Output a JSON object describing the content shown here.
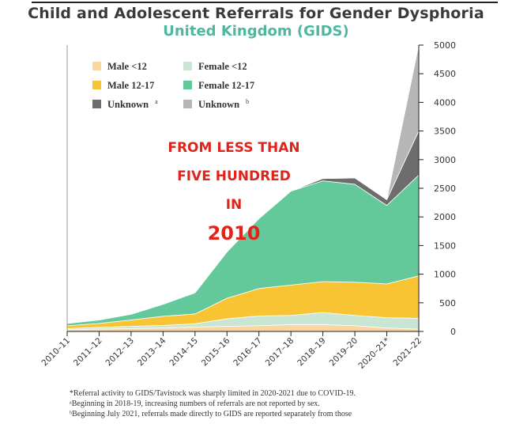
{
  "title": "Child and Adolescent Referrals for Gender Dysphoria",
  "subtitle": "United Kingdom (GIDS)",
  "annotation": {
    "line1": "FROM LESS THAN",
    "line2": "FIVE HUNDRED",
    "line3": "IN",
    "line4": "2010"
  },
  "footnotes": {
    "main": "*Referral activity to GIDS/Tavistock was sharply limited in 2020-2021 due to COVID-19.",
    "a": "ᵃBeginning in 2018-19, increasing numbers of referrals are not reported by sex.",
    "b": "ᵇBeginning July 2021, referrals made directly to GIDS are reported separately from those"
  },
  "chart_data": {
    "type": "area",
    "stacked": true,
    "title": "Child and Adolescent Referrals for Gender Dysphoria",
    "subtitle": "United Kingdom (GIDS)",
    "x": [
      "2010–11",
      "2011–12",
      "2012–13",
      "2013–14",
      "2014–15",
      "2015–16",
      "2016–17",
      "2017–18",
      "2018–19",
      "2019–20",
      "2020–21*",
      "2021–22"
    ],
    "ylim": [
      0,
      5000
    ],
    "yticks": [
      0,
      500,
      1000,
      1500,
      2000,
      2500,
      3000,
      3500,
      4000,
      4500,
      5000
    ],
    "ytick_labels": [
      "0",
      "500",
      "1000",
      "1500",
      "2000",
      "2500",
      "3000",
      "3500",
      "4000",
      "4500",
      "5000"
    ],
    "series": [
      {
        "name": "Male <12",
        "sup": "",
        "color": "#f8d7a0",
        "values": [
          30,
          40,
          50,
          60,
          75,
          90,
          100,
          120,
          120,
          100,
          60,
          40
        ]
      },
      {
        "name": "Female <12",
        "sup": "",
        "color": "#c9e6d4",
        "values": [
          20,
          30,
          40,
          45,
          60,
          130,
          170,
          160,
          210,
          180,
          180,
          190
        ]
      },
      {
        "name": "Male 12-17",
        "sup": "",
        "color": "#f8c434",
        "values": [
          50,
          70,
          110,
          160,
          170,
          360,
          480,
          530,
          540,
          580,
          590,
          740
        ]
      },
      {
        "name": "Female 12-17",
        "sup": "",
        "color": "#63c99b",
        "values": [
          40,
          60,
          100,
          210,
          370,
          810,
          1220,
          1640,
          1760,
          1710,
          1370,
          1760
        ]
      },
      {
        "name": "Unknown",
        "sup": "a",
        "color": "#6d6d6d",
        "values": [
          0,
          0,
          0,
          0,
          0,
          0,
          0,
          0,
          40,
          110,
          100,
          770
        ]
      },
      {
        "name": "Unknown",
        "sup": "b",
        "color": "#b6b6b6",
        "values": [
          0,
          0,
          0,
          0,
          0,
          0,
          0,
          0,
          0,
          0,
          0,
          1500
        ]
      }
    ],
    "legend_position": "top-left",
    "grid": false
  }
}
